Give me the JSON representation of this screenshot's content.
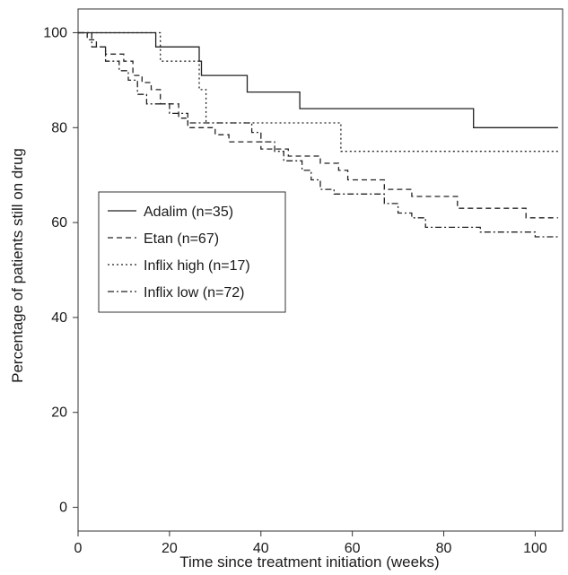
{
  "chart_data": {
    "type": "line",
    "step": true,
    "xlabel": "Time since treatment initiation (weeks)",
    "ylabel": "Percentage of patients still on drug",
    "xlim": [
      0,
      106
    ],
    "ylim": [
      -5,
      105
    ],
    "xticks": [
      0,
      20,
      40,
      60,
      80,
      100
    ],
    "yticks": [
      0,
      20,
      40,
      60,
      80,
      100
    ],
    "grid": false,
    "legend_position": "middle-left",
    "series": [
      {
        "name": "Adalim (n=35)",
        "dash": "solid",
        "points": [
          [
            0,
            100
          ],
          [
            17,
            100
          ],
          [
            17,
            97
          ],
          [
            26.5,
            97
          ],
          [
            26.5,
            94
          ],
          [
            27,
            94
          ],
          [
            27,
            91
          ],
          [
            37,
            91
          ],
          [
            37,
            87.5
          ],
          [
            48.5,
            87.5
          ],
          [
            48.5,
            84
          ],
          [
            86.5,
            84
          ],
          [
            86.5,
            80
          ],
          [
            105,
            80
          ]
        ]
      },
      {
        "name": "Etan (n=67)",
        "dash": "dashed",
        "points": [
          [
            0,
            100
          ],
          [
            2,
            100
          ],
          [
            2,
            98.5
          ],
          [
            4,
            98.5
          ],
          [
            4,
            97
          ],
          [
            6,
            97
          ],
          [
            6,
            95.5
          ],
          [
            10,
            95.5
          ],
          [
            10,
            94
          ],
          [
            12,
            94
          ],
          [
            12,
            91
          ],
          [
            14,
            91
          ],
          [
            14,
            89.5
          ],
          [
            16,
            89.5
          ],
          [
            16,
            88
          ],
          [
            18,
            88
          ],
          [
            18,
            85
          ],
          [
            22,
            85
          ],
          [
            22,
            82
          ],
          [
            24,
            82
          ],
          [
            24,
            80
          ],
          [
            30,
            80
          ],
          [
            30,
            78.5
          ],
          [
            33,
            78.5
          ],
          [
            33,
            77
          ],
          [
            40,
            77
          ],
          [
            40,
            75.5
          ],
          [
            46,
            75.5
          ],
          [
            46,
            74
          ],
          [
            53,
            74
          ],
          [
            53,
            72.5
          ],
          [
            57,
            72.5
          ],
          [
            57,
            71
          ],
          [
            59,
            71
          ],
          [
            59,
            69
          ],
          [
            67,
            69
          ],
          [
            67,
            67
          ],
          [
            73,
            67
          ],
          [
            73,
            65.5
          ],
          [
            83,
            65.5
          ],
          [
            83,
            63
          ],
          [
            98,
            63
          ],
          [
            98,
            61
          ],
          [
            105,
            61
          ]
        ]
      },
      {
        "name": "Inflix high (n=17)",
        "dash": "dotted",
        "points": [
          [
            0,
            100
          ],
          [
            18,
            100
          ],
          [
            18,
            94
          ],
          [
            26.5,
            94
          ],
          [
            26.5,
            88
          ],
          [
            28,
            88
          ],
          [
            28,
            81
          ],
          [
            57.5,
            81
          ],
          [
            57.5,
            75
          ],
          [
            105,
            75
          ]
        ]
      },
      {
        "name": "Inflix low (n=72)",
        "dash": "dashdot",
        "points": [
          [
            0,
            100
          ],
          [
            3,
            100
          ],
          [
            3,
            97
          ],
          [
            6,
            97
          ],
          [
            6,
            94
          ],
          [
            9,
            94
          ],
          [
            9,
            92
          ],
          [
            11,
            92
          ],
          [
            11,
            90
          ],
          [
            13,
            90
          ],
          [
            13,
            87
          ],
          [
            15,
            87
          ],
          [
            15,
            85
          ],
          [
            20,
            85
          ],
          [
            20,
            83
          ],
          [
            24,
            83
          ],
          [
            24,
            81
          ],
          [
            38,
            81
          ],
          [
            38,
            79
          ],
          [
            40,
            79
          ],
          [
            40,
            77
          ],
          [
            43,
            77
          ],
          [
            43,
            75
          ],
          [
            45,
            75
          ],
          [
            45,
            73
          ],
          [
            49,
            73
          ],
          [
            49,
            71
          ],
          [
            51,
            71
          ],
          [
            51,
            69
          ],
          [
            53,
            69
          ],
          [
            53,
            67
          ],
          [
            56,
            67
          ],
          [
            56,
            66
          ],
          [
            67,
            66
          ],
          [
            67,
            64
          ],
          [
            70,
            64
          ],
          [
            70,
            62
          ],
          [
            73,
            62
          ],
          [
            73,
            61
          ],
          [
            76,
            61
          ],
          [
            76,
            59
          ],
          [
            88,
            59
          ],
          [
            88,
            58
          ],
          [
            100,
            58
          ],
          [
            100,
            57
          ],
          [
            105,
            57
          ]
        ]
      }
    ]
  }
}
